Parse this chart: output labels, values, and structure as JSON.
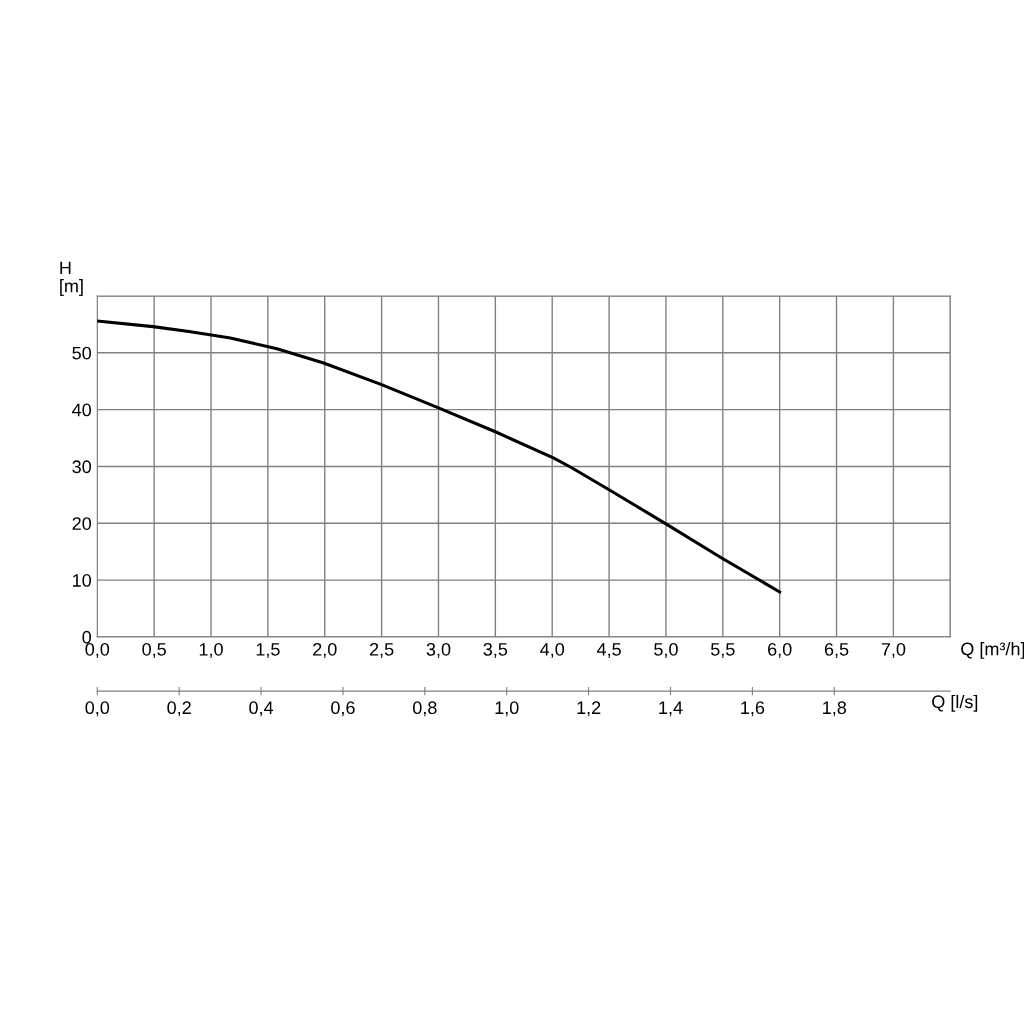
{
  "chart_data": {
    "type": "line",
    "xlabel": "Q [m³/h]",
    "ylabel": "H\n[m]",
    "x2label": "Q [l/s]",
    "x": [
      0,
      0.49,
      0.82,
      1.17,
      1.58,
      1.99,
      2.5,
      3.0,
      3.5,
      4.01,
      4.16,
      4.5,
      5.0,
      5.49,
      6.0
    ],
    "series": [
      {
        "color": "#000000",
        "values": [
          55.6,
          54.6,
          53.7,
          52.6,
          50.7,
          48.2,
          44.4,
          40.3,
          36.1,
          31.5,
          29.9,
          25.9,
          19.9,
          13.9,
          7.9
        ]
      }
    ],
    "xlim": [
      0,
      7.5
    ],
    "xticks": [
      {
        "value": 0,
        "label": "0,0"
      },
      {
        "value": 0.5,
        "label": "0,5"
      },
      {
        "value": 1,
        "label": "1,0"
      },
      {
        "value": 1.5,
        "label": "1,5"
      },
      {
        "value": 2,
        "label": "2,0"
      },
      {
        "value": 2.5,
        "label": "2,5"
      },
      {
        "value": 3,
        "label": "3,0"
      },
      {
        "value": 3.5,
        "label": "3,5"
      },
      {
        "value": 4,
        "label": "4,0"
      },
      {
        "value": 4.5,
        "label": "4,5"
      },
      {
        "value": 5,
        "label": "5,0"
      },
      {
        "value": 5.5,
        "label": "5,5"
      },
      {
        "value": 6,
        "label": "6,0"
      },
      {
        "value": 6.5,
        "label": "6,5"
      },
      {
        "value": 7,
        "label": "7,0"
      },
      {
        "value": 7.5,
        "label": null
      }
    ],
    "ylim": [
      0,
      60
    ],
    "yticks": [
      0,
      10,
      20,
      30,
      40,
      50,
      {
        "value": 60,
        "label": null
      }
    ],
    "x2lim": [
      0,
      2.0833
    ],
    "x2ticks": [
      {
        "value": 0,
        "label": "0,0"
      },
      {
        "value": 0.2,
        "label": "0,2"
      },
      {
        "value": 0.4,
        "label": "0,4"
      },
      {
        "value": 0.6,
        "label": "0,6"
      },
      {
        "value": 0.8,
        "label": "0,8"
      },
      {
        "value": 1.0,
        "label": "1,0"
      },
      {
        "value": 1.2,
        "label": "1,2"
      },
      {
        "value": 1.4,
        "label": "1,4"
      },
      {
        "value": 1.6,
        "label": "1,6"
      },
      {
        "value": 1.8,
        "label": "1,8"
      }
    ],
    "grid": true,
    "legend": false,
    "marker": "none",
    "line_style": "solid"
  }
}
